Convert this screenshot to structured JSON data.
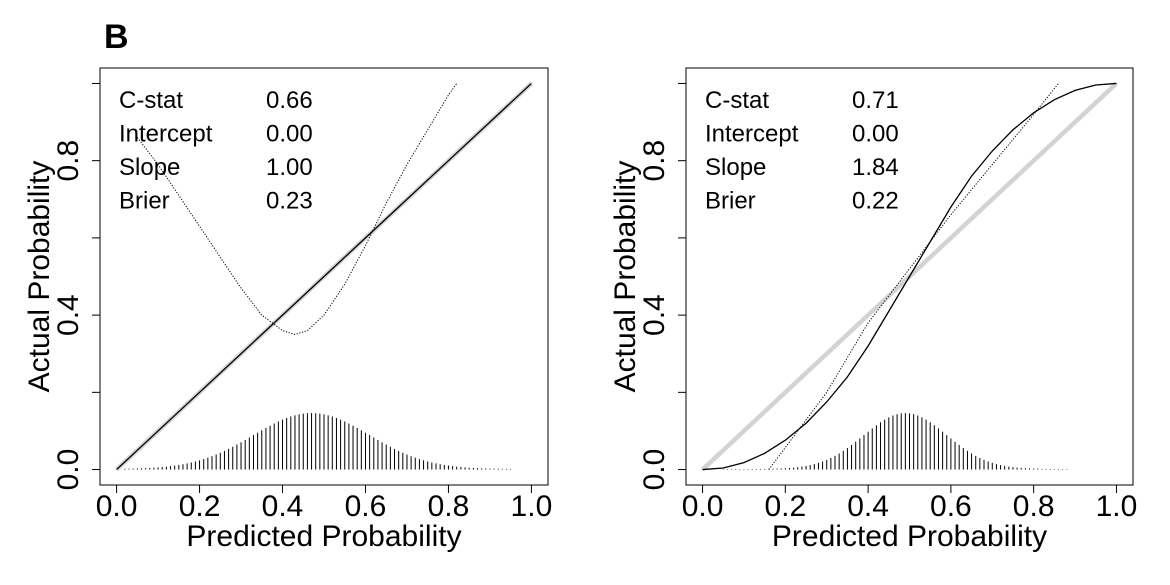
{
  "figure": {
    "panel_label": "B"
  },
  "chart_data": [
    {
      "type": "line",
      "xlabel": "Predicted Probability",
      "ylabel": "Actual Probability",
      "xlim": [
        0.0,
        1.0
      ],
      "ylim": [
        0.0,
        1.0
      ],
      "x_ticks": [
        "0.0",
        "0.2",
        "0.4",
        "0.6",
        "0.8",
        "1.0"
      ],
      "y_ticks": [
        "0.0",
        "0.4",
        "0.8"
      ],
      "stats": [
        {
          "label": "C-stat",
          "value": "0.66"
        },
        {
          "label": "Intercept",
          "value": "0.00"
        },
        {
          "label": "Slope",
          "value": "1.00"
        },
        {
          "label": "Brier",
          "value": "0.23"
        }
      ],
      "ideal_line": {
        "x": [
          0,
          1
        ],
        "y": [
          0,
          1
        ],
        "color": "#d3d3d3"
      },
      "calibration_curve": {
        "x": [
          0.0,
          0.2,
          0.4,
          0.6,
          0.8,
          1.0
        ],
        "y": [
          0.0,
          0.2,
          0.4,
          0.6,
          0.8,
          1.0
        ],
        "color": "#000000"
      },
      "loess_curve": {
        "x": [
          0.05,
          0.1,
          0.15,
          0.2,
          0.25,
          0.3,
          0.35,
          0.4,
          0.43,
          0.46,
          0.5,
          0.55,
          0.6,
          0.65,
          0.7,
          0.75,
          0.8,
          0.82
        ],
        "y": [
          0.86,
          0.79,
          0.71,
          0.63,
          0.55,
          0.47,
          0.4,
          0.36,
          0.35,
          0.36,
          0.4,
          0.48,
          0.58,
          0.69,
          0.79,
          0.88,
          0.97,
          1.0
        ],
        "color": "#000000"
      },
      "histogram": {
        "x_start": 0.02,
        "x_end": 0.95,
        "step": 0.01,
        "center": 0.47,
        "sd": 0.14,
        "max_height": 0.145
      }
    },
    {
      "type": "line",
      "xlabel": "Predicted Probability",
      "ylabel": "Actual Probability",
      "xlim": [
        0.0,
        1.0
      ],
      "ylim": [
        0.0,
        1.0
      ],
      "x_ticks": [
        "0.0",
        "0.2",
        "0.4",
        "0.6",
        "0.8",
        "1.0"
      ],
      "y_ticks": [
        "0.0",
        "0.4",
        "0.8"
      ],
      "stats": [
        {
          "label": "C-stat",
          "value": "0.71"
        },
        {
          "label": "Intercept",
          "value": "0.00"
        },
        {
          "label": "Slope",
          "value": "1.84"
        },
        {
          "label": "Brier",
          "value": "0.22"
        }
      ],
      "ideal_line": {
        "x": [
          0,
          1
        ],
        "y": [
          0,
          1
        ],
        "color": "#d3d3d3"
      },
      "calibration_curve": {
        "x": [
          0.0,
          0.05,
          0.1,
          0.15,
          0.2,
          0.25,
          0.3,
          0.35,
          0.4,
          0.45,
          0.5,
          0.55,
          0.6,
          0.65,
          0.7,
          0.75,
          0.8,
          0.85,
          0.9,
          0.95,
          1.0
        ],
        "y": [
          0.0,
          0.004,
          0.018,
          0.042,
          0.076,
          0.12,
          0.175,
          0.24,
          0.32,
          0.41,
          0.5,
          0.59,
          0.68,
          0.76,
          0.825,
          0.88,
          0.924,
          0.958,
          0.982,
          0.996,
          1.0
        ],
        "color": "#000000"
      },
      "loess_curve": {
        "x": [
          0.16,
          0.3,
          0.4,
          0.5,
          0.6,
          0.7,
          0.8,
          0.86
        ],
        "y": [
          0.0,
          0.2,
          0.38,
          0.52,
          0.66,
          0.79,
          0.92,
          1.0
        ],
        "color": "#000000"
      },
      "histogram": {
        "x_start": 0.05,
        "x_end": 0.88,
        "step": 0.01,
        "center": 0.49,
        "sd": 0.1,
        "max_height": 0.145
      }
    }
  ]
}
